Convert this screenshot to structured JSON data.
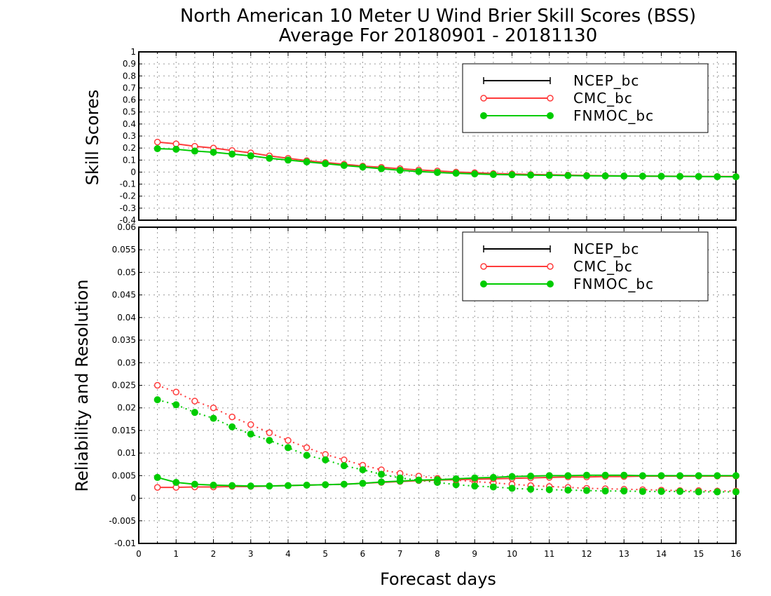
{
  "chart_data": {
    "title_line1": "North American 10 Meter U Wind Brier Skill Scores (BSS)",
    "title_line2": "Average For 20180901 - 20181130",
    "xlabel": "Forecast days",
    "xlim": [
      0,
      16
    ],
    "x_ticks": [
      "0",
      "1",
      "2",
      "3",
      "4",
      "5",
      "6",
      "7",
      "8",
      "9",
      "10",
      "11",
      "12",
      "13",
      "14",
      "15",
      "16"
    ],
    "x": [
      0.5,
      1,
      1.5,
      2,
      2.5,
      3,
      3.5,
      4,
      4.5,
      5,
      5.5,
      6,
      6.5,
      7,
      7.5,
      8,
      8.5,
      9,
      9.5,
      10,
      10.5,
      11,
      11.5,
      12,
      12.5,
      13,
      13.5,
      14,
      14.5,
      15,
      15.5,
      16
    ],
    "colors": {
      "NCEP_bc": "#000000",
      "CMC_bc": "#ff3b3b",
      "FNMOC_bc": "#00cc00"
    },
    "panels": [
      {
        "type": "line",
        "ylabel": "Skill Scores",
        "ylim": [
          -0.4,
          1
        ],
        "y_ticks": [
          "1",
          "0.9",
          "0.8",
          "0.7",
          "0.6",
          "0.5",
          "0.4",
          "0.3",
          "0.2",
          "0.1",
          "0",
          "-0.1",
          "-0.2",
          "-0.3",
          "-0.4"
        ],
        "grid": true,
        "legend_position": "top-right",
        "legend": [
          "NCEP_bc",
          "CMC_bc",
          "FNMOC_bc"
        ],
        "series": [
          {
            "name": "CMC_bc",
            "marker": "open-circle",
            "style": "solid",
            "values": [
              0.25,
              0.235,
              0.215,
              0.2,
              0.18,
              0.16,
              0.135,
              0.115,
              0.095,
              0.08,
              0.065,
              0.05,
              0.04,
              0.028,
              0.018,
              0.01,
              0.0,
              -0.005,
              -0.012,
              -0.015,
              -0.02,
              -0.022,
              -0.025,
              -0.028,
              -0.03,
              -0.032,
              -0.033,
              -0.034,
              -0.035,
              -0.036,
              -0.036,
              -0.037
            ]
          },
          {
            "name": "FNMOC_bc",
            "marker": "filled-circle",
            "style": "solid",
            "values": [
              0.195,
              0.19,
              0.175,
              0.165,
              0.15,
              0.135,
              0.115,
              0.1,
              0.085,
              0.07,
              0.055,
              0.042,
              0.028,
              0.015,
              0.005,
              -0.003,
              -0.01,
              -0.015,
              -0.02,
              -0.022,
              -0.025,
              -0.027,
              -0.029,
              -0.031,
              -0.032,
              -0.033,
              -0.034,
              -0.035,
              -0.036,
              -0.037,
              -0.038,
              -0.039
            ]
          }
        ]
      },
      {
        "type": "line",
        "ylabel": "Reliability and Resolution",
        "ylim": [
          -0.01,
          0.06
        ],
        "y_ticks": [
          "0.06",
          "0.055",
          "0.05",
          "0.045",
          "0.04",
          "0.035",
          "0.03",
          "0.025",
          "0.02",
          "0.015",
          "0.01",
          "0.005",
          "0",
          "-0.005",
          "-0.01"
        ],
        "grid": true,
        "legend_position": "top-right",
        "legend": [
          "NCEP_bc",
          "CMC_bc",
          "FNMOC_bc"
        ],
        "series": [
          {
            "name": "CMC_bc",
            "metric_style": "dotted",
            "marker": "open-circle",
            "values": [
              0.025,
              0.0235,
              0.0215,
              0.02,
              0.018,
              0.0163,
              0.0145,
              0.0128,
              0.0112,
              0.0097,
              0.0085,
              0.0073,
              0.0063,
              0.0055,
              0.0049,
              0.0044,
              0.004,
              0.0037,
              0.0034,
              0.0031,
              0.0028,
              0.0026,
              0.0024,
              0.0022,
              0.0021,
              0.002,
              0.0019,
              0.0018,
              0.0017,
              0.0017,
              0.0016,
              0.0016
            ]
          },
          {
            "name": "FNMOC_bc",
            "metric_style": "dotted",
            "marker": "filled-circle",
            "values": [
              0.0218,
              0.0207,
              0.019,
              0.0177,
              0.0158,
              0.0142,
              0.0128,
              0.0112,
              0.0095,
              0.0085,
              0.0072,
              0.0063,
              0.0053,
              0.0045,
              0.004,
              0.0035,
              0.003,
              0.0027,
              0.0025,
              0.0022,
              0.002,
              0.0019,
              0.0018,
              0.0017,
              0.0016,
              0.0016,
              0.0015,
              0.0015,
              0.0015,
              0.0014,
              0.0014,
              0.0014
            ]
          },
          {
            "name": "CMC_bc",
            "metric_style": "solid",
            "marker": "open-circle",
            "values": [
              0.0024,
              0.0024,
              0.0025,
              0.0025,
              0.0026,
              0.0026,
              0.0027,
              0.0028,
              0.0029,
              0.003,
              0.0031,
              0.0033,
              0.0035,
              0.0037,
              0.0039,
              0.004,
              0.0041,
              0.0042,
              0.0043,
              0.0044,
              0.0045,
              0.0046,
              0.0047,
              0.0047,
              0.0048,
              0.0048,
              0.0049,
              0.0049,
              0.0049,
              0.0049,
              0.0049,
              0.0049
            ]
          },
          {
            "name": "FNMOC_bc",
            "metric_style": "solid",
            "marker": "filled-circle",
            "values": [
              0.0046,
              0.0035,
              0.0031,
              0.0029,
              0.0028,
              0.0027,
              0.0027,
              0.0028,
              0.0029,
              0.003,
              0.0031,
              0.0033,
              0.0036,
              0.0038,
              0.004,
              0.0041,
              0.0043,
              0.0045,
              0.0046,
              0.0048,
              0.0049,
              0.005,
              0.005,
              0.0051,
              0.0051,
              0.0051,
              0.005,
              0.005,
              0.005,
              0.005,
              0.005,
              0.005
            ]
          }
        ]
      }
    ]
  }
}
